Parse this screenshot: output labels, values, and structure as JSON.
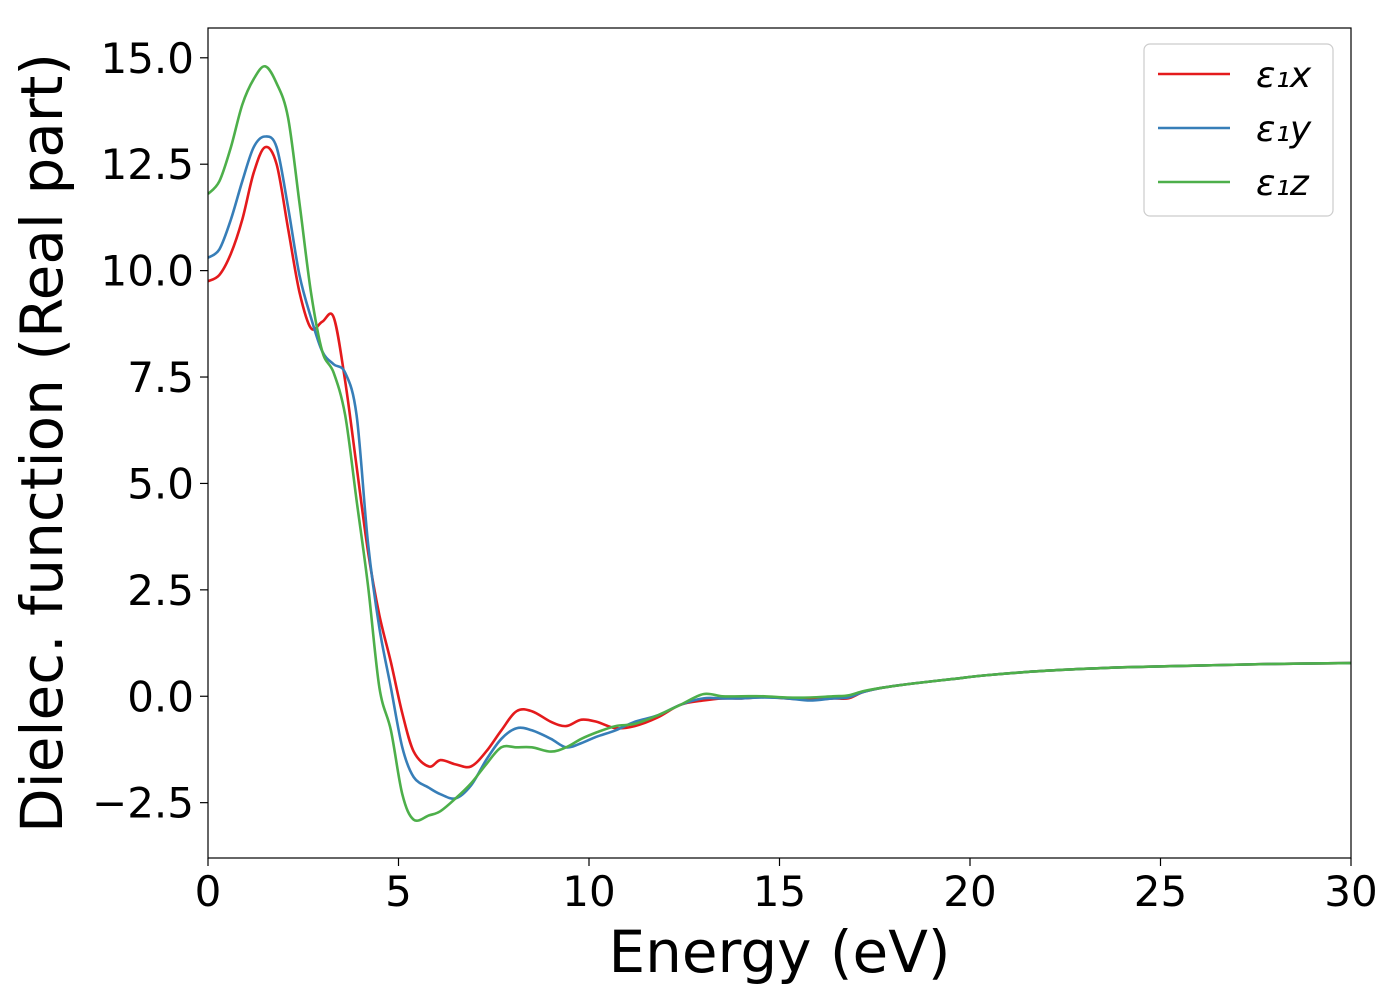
{
  "chart_data": {
    "type": "line",
    "title": "",
    "xlabel": "Energy (eV)",
    "ylabel": "Dielec. function (Real part)",
    "xlim": [
      0,
      30
    ],
    "ylim": [
      -3.8,
      15.7
    ],
    "xticks": [
      0,
      5,
      10,
      15,
      20,
      25,
      30
    ],
    "xtick_labels": [
      "0",
      "5",
      "10",
      "15",
      "20",
      "25",
      "30"
    ],
    "yticks": [
      -2.5,
      0.0,
      2.5,
      5.0,
      7.5,
      10.0,
      12.5,
      15.0
    ],
    "ytick_labels": [
      "−2.5",
      "0.0",
      "2.5",
      "5.0",
      "7.5",
      "10.0",
      "12.5",
      "15.0"
    ],
    "grid": false,
    "legend_position": "top-right",
    "series": [
      {
        "name": "ε₁x",
        "color": "#e41a1c",
        "x": [
          0,
          0.3,
          0.6,
          0.9,
          1.2,
          1.5,
          1.8,
          2.1,
          2.4,
          2.7,
          3.0,
          3.3,
          3.6,
          3.9,
          4.2,
          4.5,
          4.8,
          5.1,
          5.4,
          5.8,
          6.1,
          6.5,
          6.9,
          7.3,
          7.7,
          8.1,
          8.5,
          9.0,
          9.4,
          9.8,
          10.2,
          10.7,
          11.2,
          11.8,
          12.4,
          13.0,
          13.5,
          14.0,
          14.6,
          15.2,
          15.8,
          16.4,
          16.8,
          17.2,
          17.7,
          18.5,
          19.5,
          20.5,
          22,
          24,
          26,
          28,
          30
        ],
        "y": [
          9.75,
          9.9,
          10.4,
          11.2,
          12.3,
          12.9,
          12.5,
          11.0,
          9.5,
          8.65,
          8.8,
          8.9,
          7.4,
          5.4,
          3.4,
          1.9,
          0.8,
          -0.4,
          -1.3,
          -1.65,
          -1.5,
          -1.6,
          -1.65,
          -1.3,
          -0.8,
          -0.35,
          -0.35,
          -0.6,
          -0.7,
          -0.55,
          -0.6,
          -0.75,
          -0.7,
          -0.5,
          -0.2,
          -0.1,
          -0.05,
          -0.05,
          -0.02,
          -0.05,
          -0.08,
          -0.05,
          -0.05,
          0.1,
          0.2,
          0.3,
          0.4,
          0.5,
          0.6,
          0.68,
          0.72,
          0.76,
          0.78
        ]
      },
      {
        "name": "ε₁y",
        "color": "#377eb8",
        "x": [
          0,
          0.3,
          0.6,
          0.9,
          1.2,
          1.5,
          1.8,
          2.1,
          2.4,
          2.7,
          3.0,
          3.3,
          3.6,
          3.9,
          4.2,
          4.5,
          4.8,
          5.1,
          5.4,
          5.8,
          6.1,
          6.5,
          6.9,
          7.3,
          7.7,
          8.1,
          8.5,
          9.0,
          9.4,
          9.8,
          10.2,
          10.7,
          11.2,
          11.8,
          12.4,
          13.0,
          13.5,
          14.0,
          14.6,
          15.2,
          15.8,
          16.4,
          16.8,
          17.2,
          17.7,
          18.5,
          19.5,
          20.5,
          22,
          24,
          26,
          28,
          30
        ],
        "y": [
          10.3,
          10.5,
          11.2,
          12.1,
          12.9,
          13.15,
          12.9,
          11.5,
          9.9,
          8.9,
          8.1,
          7.8,
          7.6,
          6.6,
          3.6,
          1.6,
          0.2,
          -1.2,
          -1.9,
          -2.15,
          -2.3,
          -2.4,
          -2.1,
          -1.5,
          -1.0,
          -0.75,
          -0.8,
          -1.0,
          -1.2,
          -1.1,
          -0.95,
          -0.8,
          -0.6,
          -0.45,
          -0.2,
          -0.05,
          -0.05,
          -0.05,
          -0.03,
          -0.05,
          -0.1,
          -0.05,
          -0.03,
          0.1,
          0.2,
          0.3,
          0.4,
          0.5,
          0.6,
          0.68,
          0.72,
          0.76,
          0.78
        ]
      },
      {
        "name": "ε₁z",
        "color": "#4daf4a",
        "x": [
          0,
          0.3,
          0.6,
          0.9,
          1.2,
          1.5,
          1.8,
          2.1,
          2.4,
          2.7,
          3.0,
          3.3,
          3.6,
          3.9,
          4.2,
          4.5,
          4.8,
          5.1,
          5.4,
          5.8,
          6.1,
          6.5,
          6.9,
          7.3,
          7.7,
          8.1,
          8.5,
          9.0,
          9.4,
          9.8,
          10.2,
          10.7,
          11.2,
          11.8,
          12.4,
          13.0,
          13.5,
          14.0,
          14.6,
          15.2,
          15.8,
          16.4,
          16.8,
          17.2,
          17.7,
          18.5,
          19.5,
          20.5,
          22,
          24,
          26,
          28,
          30
        ],
        "y": [
          11.8,
          12.1,
          12.9,
          13.9,
          14.5,
          14.8,
          14.4,
          13.6,
          11.6,
          9.5,
          8.1,
          7.6,
          6.6,
          4.6,
          2.6,
          0.2,
          -0.8,
          -2.3,
          -2.9,
          -2.8,
          -2.7,
          -2.4,
          -2.05,
          -1.6,
          -1.2,
          -1.2,
          -1.2,
          -1.3,
          -1.2,
          -1.0,
          -0.85,
          -0.7,
          -0.65,
          -0.45,
          -0.2,
          0.05,
          0.0,
          0.0,
          0.0,
          -0.03,
          -0.03,
          0.0,
          0.02,
          0.12,
          0.2,
          0.3,
          0.4,
          0.5,
          0.6,
          0.68,
          0.72,
          0.76,
          0.78
        ]
      }
    ]
  }
}
